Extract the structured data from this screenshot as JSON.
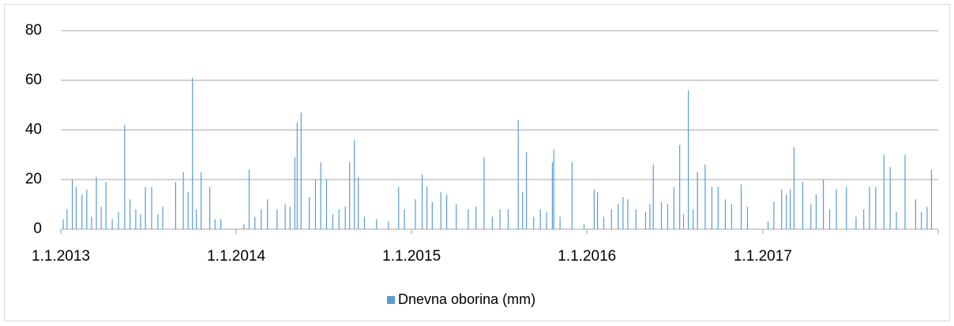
{
  "chart_data": {
    "type": "bar",
    "color": "#5b9bd5",
    "grid": true,
    "legend": "bottom",
    "series": [
      {
        "name": "Dnevna oborina (mm)",
        "color": "#5b9bd5",
        "x": [
          "2013-01-06",
          "2013-01-14",
          "2013-01-25",
          "2013-02-02",
          "2013-02-14",
          "2013-02-24",
          "2013-03-06",
          "2013-03-16",
          "2013-03-26",
          "2013-04-05",
          "2013-04-18",
          "2013-05-01",
          "2013-05-14",
          "2013-05-25",
          "2013-06-06",
          "2013-06-16",
          "2013-06-26",
          "2013-07-09",
          "2013-07-22",
          "2013-08-01",
          "2013-08-28",
          "2013-09-13",
          "2013-09-23",
          "2013-10-02",
          "2013-10-10",
          "2013-10-20",
          "2013-11-07",
          "2013-11-18",
          "2013-11-30",
          "2014-01-17",
          "2014-01-28",
          "2014-02-09",
          "2014-02-22",
          "2014-03-07",
          "2014-03-27",
          "2014-04-13",
          "2014-04-23",
          "2014-05-03",
          "2014-05-08",
          "2014-05-16",
          "2014-06-02",
          "2014-06-15",
          "2014-06-26",
          "2014-07-08",
          "2014-07-21",
          "2014-08-03",
          "2014-08-16",
          "2014-08-25",
          "2014-09-04",
          "2014-09-12",
          "2014-09-25",
          "2014-10-20",
          "2014-11-14",
          "2014-12-05",
          "2014-12-17",
          "2015-01-09",
          "2015-01-23",
          "2015-02-02",
          "2015-02-13",
          "2015-03-03",
          "2015-03-15",
          "2015-04-04",
          "2015-04-29",
          "2015-05-15",
          "2015-06-01",
          "2015-06-18",
          "2015-07-04",
          "2015-07-21",
          "2015-08-11",
          "2015-08-20",
          "2015-08-28",
          "2015-09-12",
          "2015-09-26",
          "2015-10-09",
          "2015-10-21",
          "2015-10-24",
          "2015-11-06",
          "2015-12-01",
          "2015-12-26",
          "2016-01-16",
          "2016-01-23",
          "2016-02-05",
          "2016-02-21",
          "2016-03-06",
          "2016-03-16",
          "2016-03-26",
          "2016-04-12",
          "2016-05-02",
          "2016-05-11",
          "2016-05-18",
          "2016-06-04",
          "2016-06-17",
          "2016-06-30",
          "2016-07-12",
          "2016-07-20",
          "2016-07-30",
          "2016-08-09",
          "2016-08-18",
          "2016-09-03",
          "2016-09-17",
          "2016-09-30",
          "2016-10-15",
          "2016-10-28",
          "2016-11-17",
          "2016-11-30",
          "2017-01-12",
          "2017-01-24",
          "2017-02-09",
          "2017-02-19",
          "2017-02-27",
          "2017-03-07",
          "2017-03-25",
          "2017-04-11",
          "2017-04-22",
          "2017-05-07",
          "2017-05-20",
          "2017-06-03",
          "2017-06-24",
          "2017-07-14",
          "2017-07-30",
          "2017-08-11",
          "2017-08-24",
          "2017-09-10",
          "2017-09-23",
          "2017-10-06",
          "2017-10-24",
          "2017-11-15",
          "2017-11-27",
          "2017-12-09",
          "2017-12-18"
        ],
        "values": [
          4,
          8,
          20,
          17,
          14,
          16,
          5,
          21,
          9,
          19,
          4,
          7,
          42,
          12,
          8,
          6,
          17,
          17,
          6,
          9,
          19,
          23,
          15,
          61,
          8,
          23,
          17,
          4,
          4,
          2,
          24,
          5,
          8,
          12,
          8,
          10,
          9,
          29,
          43,
          47,
          13,
          20,
          27,
          20,
          6,
          8,
          9,
          27,
          36,
          21,
          5,
          4,
          3,
          17,
          8,
          12,
          22,
          17,
          11,
          15,
          14,
          10,
          8,
          9,
          29,
          5,
          8,
          8,
          44,
          15,
          31,
          5,
          8,
          7,
          27,
          32,
          5,
          27,
          2,
          16,
          15,
          5,
          8,
          10,
          13,
          12,
          8,
          7,
          10,
          26,
          11,
          10,
          17,
          34,
          6,
          56,
          8,
          23,
          26,
          17,
          17,
          12,
          10,
          18,
          9,
          3,
          11,
          16,
          14,
          16,
          33,
          19,
          10,
          14,
          20,
          8,
          16,
          17,
          5,
          8,
          17,
          17,
          30,
          25,
          7,
          30,
          12,
          7,
          9,
          24
        ]
      }
    ],
    "xlim": [
      "2013-01-01",
      "2017-12-31"
    ],
    "xticks": [
      {
        "value": "2013-01-01",
        "label": "1.1.2013"
      },
      {
        "value": "2014-01-01",
        "label": "1.1.2014"
      },
      {
        "value": "2015-01-01",
        "label": "1.1.2015"
      },
      {
        "value": "2016-01-01",
        "label": "1.1.2016"
      },
      {
        "value": "2017-01-01",
        "label": "1.1.2017"
      }
    ],
    "ylim": [
      0,
      80
    ],
    "yticks": [
      0,
      20,
      40,
      60,
      80
    ]
  }
}
